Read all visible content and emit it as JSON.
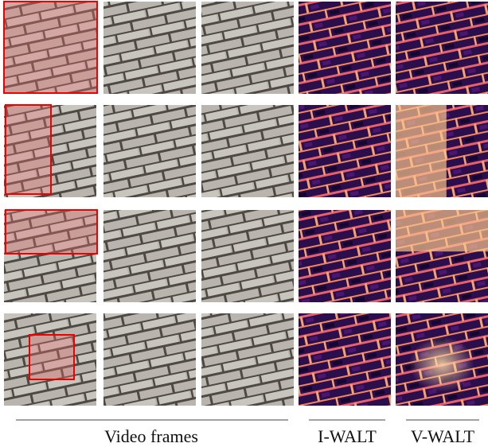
{
  "labels": {
    "video_frames": "Video frames",
    "i_walt": "I-WALT",
    "v_walt": "V-WALT"
  }
}
